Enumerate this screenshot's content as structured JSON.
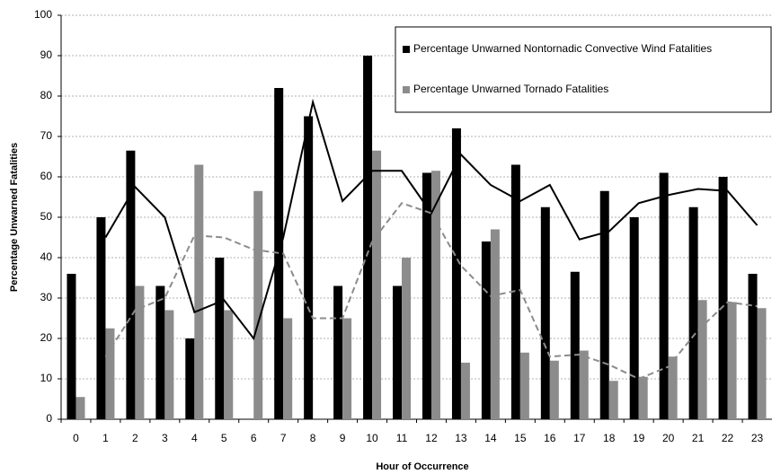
{
  "chart_data": {
    "type": "bar",
    "x_label": "Hour of Occurrence",
    "y_label": "Percentage Unwarned Fatalities",
    "categories": [
      "0",
      "1",
      "2",
      "3",
      "4",
      "5",
      "6",
      "7",
      "8",
      "9",
      "10",
      "11",
      "12",
      "13",
      "14",
      "15",
      "16",
      "17",
      "18",
      "19",
      "20",
      "21",
      "22",
      "23"
    ],
    "series": [
      {
        "name": "Percentage Unwarned Nontornadic Convective Wind Fatalities",
        "color": "#000000",
        "values": [
          36,
          50,
          66.5,
          33,
          20,
          40,
          0,
          82,
          75,
          33,
          90,
          33,
          61,
          72,
          44,
          63,
          52.5,
          36.5,
          56.5,
          50,
          61,
          52.5,
          60,
          36
        ]
      },
      {
        "name": "Percentage Unwarned Tornado Fatalities",
        "color": "#8c8c8c",
        "values": [
          5.5,
          22.5,
          33,
          27,
          63,
          27,
          56.5,
          25,
          0,
          25,
          66.5,
          40,
          61.5,
          14,
          47,
          16.5,
          14.5,
          17,
          9.5,
          10.5,
          15.5,
          29.5,
          29,
          27.5
        ]
      }
    ],
    "lines": [
      {
        "color": "#000000",
        "dashed": false,
        "values": [
          null,
          45,
          57.5,
          50,
          26.5,
          29.5,
          20,
          45,
          78.5,
          54,
          61.5,
          61.5,
          51,
          65.5,
          58,
          54,
          58,
          44.5,
          46.5,
          53.5,
          55.5,
          57,
          56.5,
          48
        ]
      },
      {
        "color": "#8c8c8c",
        "dashed": true,
        "values": [
          null,
          15.5,
          27,
          30,
          45.5,
          45,
          42,
          41,
          25,
          25,
          44,
          53.5,
          51,
          38,
          30.5,
          32,
          15.5,
          16,
          13.5,
          10,
          13,
          22,
          29,
          28
        ]
      }
    ],
    "ylim": [
      0,
      100
    ],
    "yticks": [
      0,
      10,
      20,
      30,
      40,
      50,
      60,
      70,
      80,
      90,
      100
    ],
    "grid": true,
    "legend": "top-right"
  }
}
